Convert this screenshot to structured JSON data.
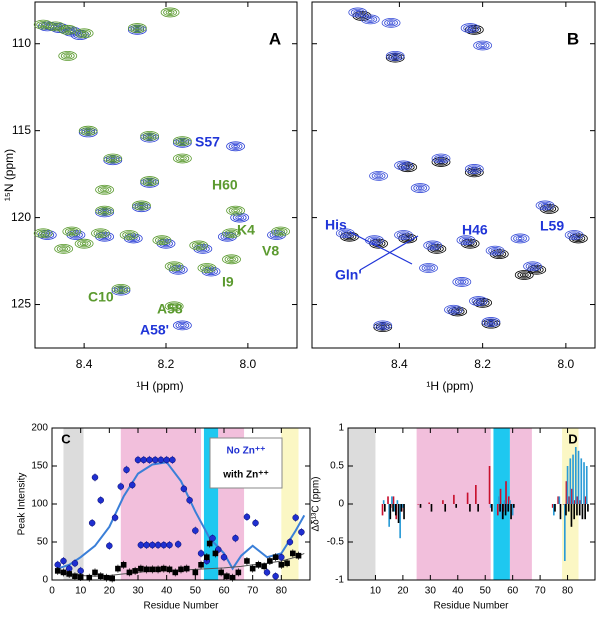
{
  "chart_data": [
    {
      "type": "contour",
      "label": "A",
      "xlabel": "¹H  (ppm)",
      "ylabel": "¹⁵N (ppm)",
      "xlim": [
        8.52,
        7.88
      ],
      "ylim": [
        127.5,
        107.6
      ],
      "xticks": [
        8.4,
        8.2,
        {
          "value": 8,
          "label": "8.0"
        }
      ],
      "yticks": [
        110,
        115,
        120,
        125
      ],
      "series": [
        {
          "color": "#2a3fd6",
          "x": [
            8.49,
            8.46,
            8.43,
            8.41,
            8.27,
            8.39,
            8.24,
            8.16,
            8.33,
            8.03,
            8.24,
            8.35,
            8.26,
            8.49,
            8.42,
            8.35,
            8.28,
            8.2,
            8.11,
            8.05,
            8.17,
            8.09,
            7.93,
            8.16,
            8.31,
            8.02
          ],
          "y": [
            109.0,
            109.1,
            109.3,
            109.5,
            109.2,
            115.1,
            115.4,
            115.7,
            116.7,
            115.9,
            118.0,
            119.7,
            119.4,
            121.0,
            121.0,
            121.1,
            121.2,
            121.5,
            121.8,
            121.1,
            123.0,
            123.1,
            121.0,
            126.2,
            124.2,
            120.0
          ]
        },
        {
          "color": "#5a9a2e",
          "x": [
            8.5,
            8.47,
            8.44,
            8.4,
            8.44,
            8.27,
            8.19,
            8.39,
            8.24,
            8.16,
            8.33,
            8.16,
            8.24,
            8.35,
            8.35,
            8.26,
            8.5,
            8.43,
            8.36,
            8.29,
            8.21,
            8.12,
            8.04,
            8.18,
            8.1,
            8.04,
            7.92,
            8.03,
            8.18,
            8.31,
            8.45,
            8.4
          ],
          "y": [
            108.9,
            109.0,
            109.2,
            109.4,
            110.7,
            109.1,
            108.2,
            115.0,
            115.3,
            115.6,
            116.6,
            116.6,
            117.9,
            118.4,
            119.6,
            119.3,
            120.9,
            120.8,
            120.9,
            121.0,
            121.3,
            121.6,
            120.9,
            122.8,
            122.9,
            122.4,
            120.8,
            119.6,
            125.1,
            124.1,
            121.8,
            121.5
          ]
        }
      ],
      "annotations": [
        {
          "text": "S57",
          "color": "#2035d8"
        },
        {
          "text": "H60",
          "color": "#5b9a2f"
        },
        {
          "text": "K4",
          "color": "#5b9a2f"
        },
        {
          "text": "V8",
          "color": "#5b9a2f"
        },
        {
          "text": "I9",
          "color": "#5b9a2f"
        },
        {
          "text": "C10",
          "color": "#5b9a2f"
        },
        {
          "text": "A58",
          "color": "#5b9a2f"
        },
        {
          "text": "A58'",
          "color": "#2035d8"
        }
      ]
    },
    {
      "type": "contour",
      "label": "B",
      "xlabel": "¹H  (ppm)",
      "xlim": [
        8.61,
        7.93
      ],
      "ylim": [
        127.5,
        107.6
      ],
      "xticks": [
        8.4,
        8.2,
        {
          "value": 8,
          "label": "8.0"
        }
      ],
      "yticks": [
        110,
        115,
        120,
        125
      ],
      "series": [
        {
          "color": "#000000",
          "x": [
            8.49,
            8.41,
            8.22,
            8.38,
            8.3,
            8.22,
            8.52,
            8.45,
            8.38,
            8.31,
            8.23,
            8.16,
            8.04,
            7.97,
            8.07,
            8.2,
            8.18,
            8.26,
            8.44,
            8.1
          ],
          "y": [
            108.4,
            110.8,
            109.2,
            117.1,
            116.8,
            117.4,
            121.1,
            121.5,
            121.2,
            121.8,
            121.5,
            122.1,
            119.5,
            121.2,
            123.0,
            124.9,
            126.1,
            125.4,
            126.3,
            123.3
          ]
        },
        {
          "color": "#3a4fd8",
          "x": [
            8.5,
            8.47,
            8.42,
            8.41,
            8.23,
            8.2,
            8.39,
            8.3,
            8.22,
            8.45,
            8.35,
            8.53,
            8.46,
            8.39,
            8.32,
            8.24,
            8.17,
            8.11,
            8.05,
            7.98,
            8.08,
            8.21,
            8.18,
            8.27,
            8.44,
            8.33,
            8.25
          ],
          "y": [
            108.2,
            108.6,
            108.8,
            110.7,
            109.1,
            110.1,
            117.0,
            116.6,
            117.2,
            117.6,
            118.3,
            120.9,
            121.3,
            121.0,
            121.6,
            121.3,
            121.9,
            121.2,
            119.3,
            121.0,
            122.8,
            124.8,
            126.0,
            125.3,
            126.2,
            122.9,
            123.7
          ]
        }
      ],
      "annotations": [
        {
          "text": "His",
          "color": "#2035d8"
        },
        {
          "text": "H46",
          "color": "#2035d8"
        },
        {
          "text": "L59",
          "color": "#2035d8"
        },
        {
          "text": "Gln'",
          "color": "#2035d8"
        }
      ]
    },
    {
      "type": "scatter",
      "label": "C",
      "xlabel": "Residue Number",
      "ylabel": "Peak Intensity",
      "xlim": [
        0,
        90
      ],
      "ylim": [
        0,
        200
      ],
      "xticks": [
        0,
        10,
        20,
        30,
        40,
        50,
        60,
        70,
        80
      ],
      "yticks": [
        0,
        50,
        100,
        150,
        200
      ],
      "legend": "upper right",
      "regions": [
        {
          "from": 4,
          "to": 11,
          "color": "#dcdcdc"
        },
        {
          "from": 24,
          "to": 52,
          "color": "#f2bfdc"
        },
        {
          "from": 53,
          "to": 58,
          "color": "#1ec8f0"
        },
        {
          "from": 58,
          "to": 67,
          "color": "#f2bfdc"
        },
        {
          "from": 80,
          "to": 86,
          "color": "#fbf7c4"
        }
      ],
      "series": [
        {
          "name": "No Zn⁺⁺",
          "color": "#1f2fd0",
          "marker": "circle",
          "x": [
            2,
            4,
            6,
            8,
            10,
            14,
            15,
            17,
            20,
            22,
            24,
            26,
            28,
            30,
            32,
            34,
            36,
            38,
            40,
            42,
            31,
            33,
            35,
            37,
            39,
            41,
            44,
            46,
            48,
            50,
            52,
            54,
            56,
            58,
            60,
            64,
            68,
            71,
            75,
            78,
            80,
            83,
            85,
            87
          ],
          "values": [
            20,
            25,
            15,
            22,
            12,
            75,
            135,
            105,
            45,
            82,
            123,
            145,
            125,
            158,
            158,
            158,
            158,
            158,
            158,
            158,
            46,
            46,
            46,
            46,
            46,
            46,
            47,
            120,
            105,
            65,
            35,
            25,
            55,
            40,
            30,
            55,
            83,
            75,
            10,
            5,
            30,
            50,
            82,
            63
          ]
        },
        {
          "name": "with Zn⁺⁺",
          "color": "#000000",
          "marker": "square",
          "x": [
            2,
            4,
            6,
            8,
            10,
            13,
            15,
            17,
            19,
            21,
            23,
            25,
            27,
            29,
            31,
            33,
            35,
            37,
            39,
            41,
            43,
            45,
            47,
            50,
            52,
            54,
            55,
            57,
            59,
            61,
            63,
            65,
            68,
            70,
            72,
            74,
            76,
            78,
            80,
            82,
            84,
            86
          ],
          "values": [
            12,
            10,
            8,
            5,
            4,
            3,
            10,
            5,
            3,
            2,
            15,
            20,
            10,
            12,
            15,
            14,
            14,
            14,
            15,
            14,
            10,
            14,
            15,
            10,
            20,
            30,
            48,
            35,
            10,
            5,
            3,
            10,
            25,
            15,
            20,
            18,
            25,
            30,
            20,
            22,
            35,
            32
          ]
        }
      ],
      "fits": [
        {
          "color": "#3a7fd8",
          "x": [
            2,
            6,
            10,
            15,
            20,
            25,
            30,
            35,
            40,
            45,
            50,
            55,
            60,
            63,
            66,
            70,
            75,
            80,
            85,
            88
          ],
          "values": [
            15,
            20,
            30,
            45,
            70,
            110,
            140,
            152,
            155,
            130,
            90,
            55,
            35,
            15,
            32,
            45,
            30,
            35,
            65,
            85
          ]
        },
        {
          "color": "#555555",
          "x": [
            2,
            6,
            10,
            15,
            20,
            25,
            30,
            35,
            40,
            45,
            50,
            55,
            60,
            63,
            66,
            70,
            75,
            80,
            85,
            88
          ],
          "values": [
            10,
            8,
            6,
            5,
            6,
            8,
            10,
            12,
            13,
            13,
            14,
            15,
            16,
            17,
            18,
            20,
            22,
            25,
            30,
            35
          ]
        }
      ]
    },
    {
      "type": "bar",
      "label": "D",
      "xlabel": "Residue Number",
      "ylabel": "Δδ¹³C (ppm)",
      "xlim": [
        0,
        90
      ],
      "ylim": [
        -1,
        1
      ],
      "xticks": [
        10,
        20,
        30,
        40,
        50,
        60,
        70,
        80
      ],
      "yticks": [
        1,
        0.5,
        0,
        -0.5,
        -1
      ],
      "regions": [
        {
          "from": 0,
          "to": 10,
          "color": "#dcdcdc"
        },
        {
          "from": 25,
          "to": 52,
          "color": "#f2bfdc"
        },
        {
          "from": 53,
          "to": 59,
          "color": "#1ec8f0"
        },
        {
          "from": 59,
          "to": 67,
          "color": "#f2bfdc"
        },
        {
          "from": 78,
          "to": 84,
          "color": "#fbf7c4"
        }
      ],
      "x": [
        13,
        15,
        16,
        17,
        18,
        19,
        20,
        26,
        30,
        35,
        39,
        44,
        47,
        52,
        55,
        56,
        57,
        58,
        59,
        60,
        75,
        77,
        79,
        80,
        81,
        82,
        83,
        84,
        85,
        86,
        87
      ],
      "series": [
        {
          "color": "#c8102e",
          "values": [
            -0.15,
            0.1,
            -0.05,
            0.1,
            -0.2,
            0,
            -0.1,
            0,
            0.02,
            0.05,
            0.12,
            0.15,
            0.25,
            0.5,
            -0.15,
            0.2,
            -0.1,
            0.3,
            0.1,
            0,
            -0.05,
            0.1,
            0,
            0.3,
            0.1,
            0.2,
            0.05,
            0.1,
            0.05,
            0,
            0.1
          ]
        },
        {
          "color": "#2b9bd6",
          "values": [
            0.05,
            -0.3,
            0.1,
            -0.1,
            0.05,
            -0.45,
            -0.05,
            null,
            null,
            null,
            null,
            null,
            null,
            -0.05,
            0.1,
            -0.2,
            0.05,
            -0.1,
            0.05,
            -0.15,
            -0.15,
            0.1,
            -0.75,
            0.5,
            0.6,
            0.65,
            0.75,
            0.7,
            0.6,
            0.55,
            0.5
          ]
        },
        {
          "color": "#000000",
          "values": [
            -0.1,
            -0.2,
            -0.1,
            -0.15,
            -0.25,
            -0.1,
            -0.2,
            -0.05,
            -0.1,
            -0.1,
            -0.05,
            -0.1,
            -0.1,
            -0.1,
            -0.1,
            -0.2,
            -0.15,
            -0.1,
            -0.2,
            -0.05,
            -0.1,
            -0.2,
            -0.15,
            -0.1,
            -0.3,
            -0.2,
            -0.15,
            -0.15,
            -0.2,
            -0.2,
            -0.1
          ]
        }
      ]
    }
  ]
}
